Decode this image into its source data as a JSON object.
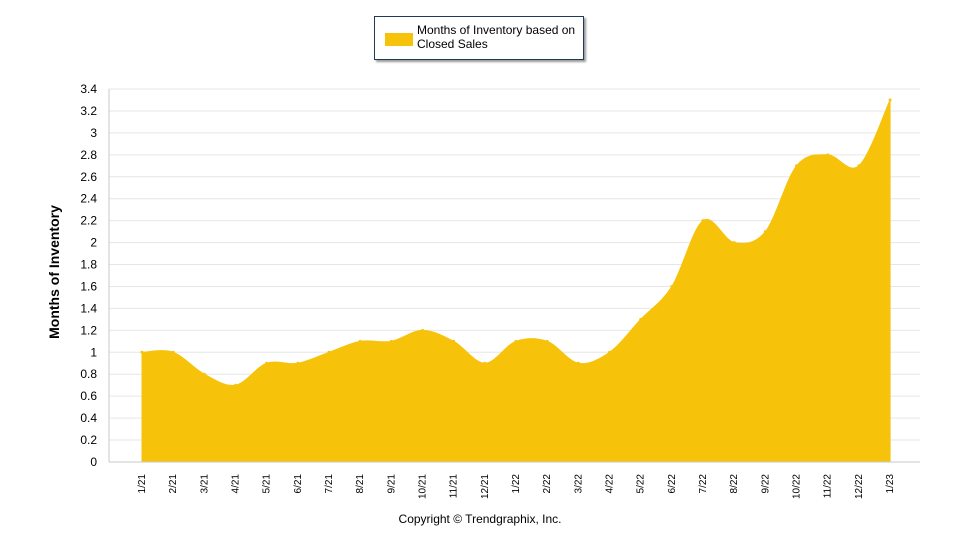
{
  "chart_data": {
    "type": "area",
    "title": "",
    "xlabel": "",
    "ylabel": "Months of Inventory",
    "ylim": [
      0,
      3.4
    ],
    "yticks": [
      "0",
      "0.2",
      "0.4",
      "0.6",
      "0.8",
      "1",
      "1.2",
      "1.4",
      "1.6",
      "1.8",
      "2",
      "2.2",
      "2.4",
      "2.6",
      "2.8",
      "3",
      "3.2",
      "3.4"
    ],
    "categories": [
      "1/21",
      "2/21",
      "3/21",
      "4/21",
      "5/21",
      "6/21",
      "7/21",
      "8/21",
      "9/21",
      "10/21",
      "11/21",
      "12/21",
      "1/22",
      "2/22",
      "3/22",
      "4/22",
      "5/22",
      "6/22",
      "7/22",
      "8/22",
      "9/22",
      "10/22",
      "11/22",
      "12/22",
      "1/23"
    ],
    "series": [
      {
        "name": "Months of Inventory based on Closed Sales",
        "values": [
          1.0,
          1.0,
          0.8,
          0.7,
          0.9,
          0.9,
          1.0,
          1.1,
          1.1,
          1.2,
          1.1,
          0.9,
          1.1,
          1.1,
          0.9,
          1.0,
          1.3,
          1.6,
          2.2,
          2.0,
          2.1,
          2.7,
          2.8,
          2.7,
          3.3
        ],
        "color": "#f6c30a"
      }
    ],
    "grid": true,
    "legend": "top-center"
  },
  "legend": {
    "label": "Months of Inventory based on Closed Sales"
  },
  "footer": {
    "copyright": "Copyright © Trendgraphix, Inc."
  }
}
